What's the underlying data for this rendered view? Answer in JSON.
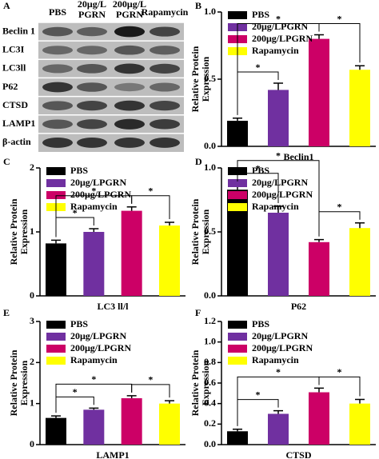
{
  "blot": {
    "panel": "A",
    "lane_labels": [
      [
        "PBS"
      ],
      [
        "20μg/L",
        "PGRN"
      ],
      [
        "200μg/L",
        "PGRN"
      ],
      [
        "Rapamycin"
      ]
    ],
    "row_labels": [
      "Beclin 1",
      "LC3I",
      "LC3ll",
      "P62",
      "CTSD",
      "LAMP1",
      "β-actin"
    ]
  },
  "chart_data": [
    {
      "type": "bar",
      "panel": "B",
      "ylabel": [
        "Relative Protein",
        "Expression"
      ],
      "categories": [
        "Beclin1"
      ],
      "ylim": [
        0,
        1
      ],
      "yticks": [
        {
          "value": 0,
          "label": "0.0"
        },
        0.5,
        {
          "value": 1,
          "label": "1.0"
        }
      ],
      "annotations": [
        "*",
        "*",
        "*"
      ],
      "series": [
        {
          "name": "PBS",
          "color": "#000000",
          "values": [
            0.19
          ],
          "errors": [
            0.02
          ]
        },
        {
          "name": "20μg/LPGRN",
          "color": "#7030a0",
          "values": [
            0.42
          ],
          "errors": [
            0.05
          ]
        },
        {
          "name": "200μg/LPGRN",
          "color": "#cc0066",
          "values": [
            0.8
          ],
          "errors": [
            0.03
          ]
        },
        {
          "name": "Rapamycin",
          "color": "#ffff00",
          "values": [
            0.57
          ],
          "errors": [
            0.03
          ]
        }
      ]
    },
    {
      "type": "bar",
      "panel": "C",
      "ylabel": [
        "Relative Protein",
        "Expression"
      ],
      "categories": [
        "LC3 ll/l"
      ],
      "ylim": [
        0,
        2
      ],
      "yticks": [
        0,
        1,
        2
      ],
      "annotations": [
        "*",
        "*",
        "*"
      ],
      "series": [
        {
          "name": "PBS",
          "color": "#000000",
          "values": [
            0.82
          ],
          "errors": [
            0.05
          ]
        },
        {
          "name": "20μg/LPGRN",
          "color": "#7030a0",
          "values": [
            1.0
          ],
          "errors": [
            0.05
          ]
        },
        {
          "name": "200μg/LPGRN",
          "color": "#cc0066",
          "values": [
            1.33
          ],
          "errors": [
            0.06
          ]
        },
        {
          "name": "Rapamycin",
          "color": "#ffff00",
          "values": [
            1.1
          ],
          "errors": [
            0.05
          ]
        }
      ]
    },
    {
      "type": "bar",
      "panel": "D",
      "ylabel": [
        "Relative Protein",
        "Expression"
      ],
      "categories": [
        "P62"
      ],
      "ylim": [
        0,
        1
      ],
      "yticks": [
        {
          "value": 0,
          "label": "0.0"
        },
        0.5,
        {
          "value": 1,
          "label": "1.0"
        }
      ],
      "annotations": [
        "*",
        "*",
        "*"
      ],
      "series": [
        {
          "name": "PBS",
          "color": "#000000",
          "values": [
            0.83
          ],
          "errors": [
            0.04
          ]
        },
        {
          "name": "20μg/LPGRN",
          "color": "#7030a0",
          "values": [
            0.65
          ],
          "errors": [
            0.05
          ]
        },
        {
          "name": "200μg/LPGRN",
          "color": "#cc0066",
          "values": [
            0.42
          ],
          "errors": [
            0.02
          ]
        },
        {
          "name": "Rapamycin",
          "color": "#ffff00",
          "values": [
            0.53
          ],
          "errors": [
            0.04
          ]
        }
      ]
    },
    {
      "type": "bar",
      "panel": "E",
      "ylabel": [
        "Relative Protein",
        "Expression"
      ],
      "categories": [
        "LAMP1"
      ],
      "ylim": [
        0,
        3
      ],
      "yticks": [
        0,
        1,
        2,
        3
      ],
      "annotations": [
        "*",
        "*",
        "*"
      ],
      "series": [
        {
          "name": "PBS",
          "color": "#000000",
          "values": [
            0.65
          ],
          "errors": [
            0.05
          ]
        },
        {
          "name": "20μg/LPGRN",
          "color": "#7030a0",
          "values": [
            0.85
          ],
          "errors": [
            0.04
          ]
        },
        {
          "name": "200μg/LPGRN",
          "color": "#cc0066",
          "values": [
            1.13
          ],
          "errors": [
            0.06
          ]
        },
        {
          "name": "Rapamycin",
          "color": "#ffff00",
          "values": [
            1.0
          ],
          "errors": [
            0.07
          ]
        }
      ]
    },
    {
      "type": "bar",
      "panel": "F",
      "ylabel": [
        "Relative Protein",
        "Expression"
      ],
      "categories": [
        "CTSD"
      ],
      "ylim": [
        0,
        1.2
      ],
      "yticks": [
        {
          "value": 0,
          "label": "0.0"
        },
        0.2,
        0.4,
        0.6,
        0.8,
        {
          "value": 1,
          "label": "1.0"
        },
        1.2
      ],
      "annotations": [
        "*",
        "*",
        "*"
      ],
      "series": [
        {
          "name": "PBS",
          "color": "#000000",
          "values": [
            0.13
          ],
          "errors": [
            0.02
          ]
        },
        {
          "name": "20μg/LPGRN",
          "color": "#7030a0",
          "values": [
            0.3
          ],
          "errors": [
            0.03
          ]
        },
        {
          "name": "200μg/LPGRN",
          "color": "#cc0066",
          "values": [
            0.51
          ],
          "errors": [
            0.04
          ]
        },
        {
          "name": "Rapamycin",
          "color": "#ffff00",
          "values": [
            0.4
          ],
          "errors": [
            0.04
          ]
        }
      ]
    }
  ]
}
